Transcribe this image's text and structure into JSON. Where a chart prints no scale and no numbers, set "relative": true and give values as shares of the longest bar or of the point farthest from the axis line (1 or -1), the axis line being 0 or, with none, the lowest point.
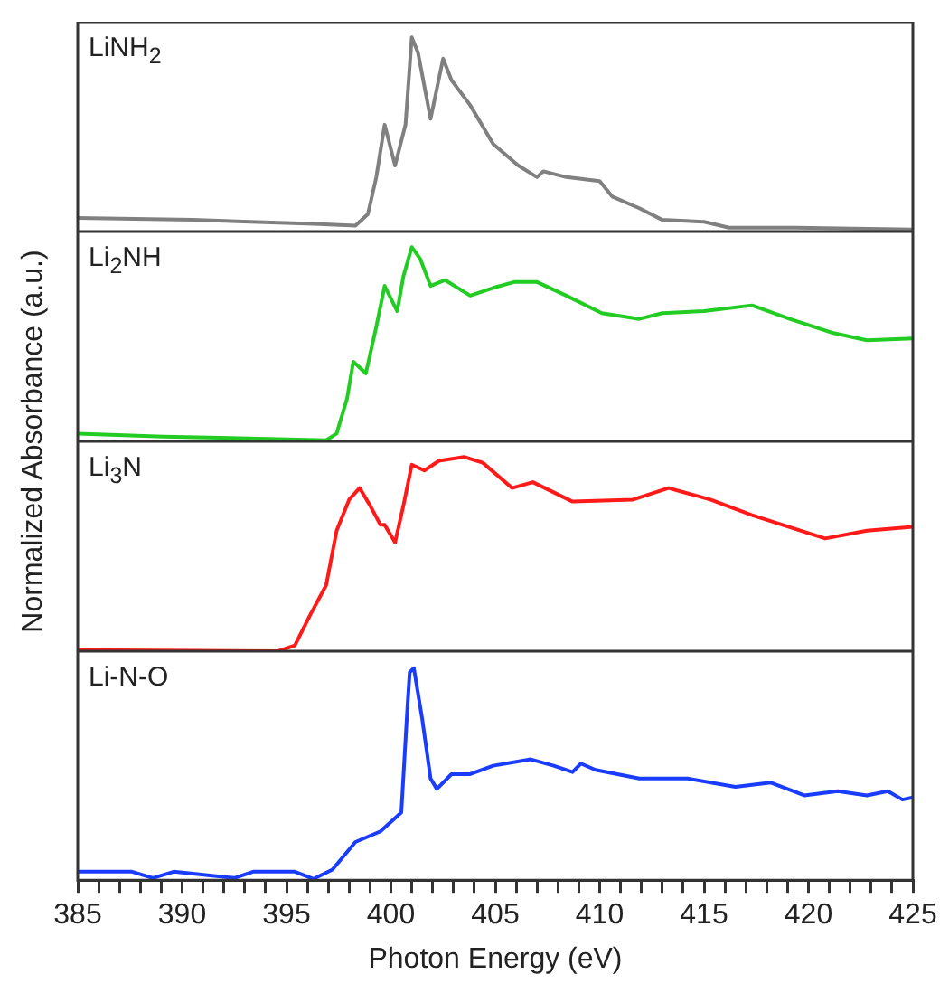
{
  "chart_data": [
    {
      "type": "line",
      "ylabel": "Normalized Absorbance (a.u.)",
      "relative": true,
      "xlim": [
        385,
        425
      ],
      "tick_labels": false,
      "x": [
        385,
        390.5,
        396.3,
        398.3,
        398.9,
        399.3,
        399.7,
        400.2,
        400.7,
        401.0,
        401.3,
        401.9,
        402.5,
        402.9,
        403.8,
        404.9,
        406.1,
        407.0,
        407.3,
        408.4,
        410.0,
        410.6,
        411.9,
        413.0,
        415.0,
        416.2,
        419.4,
        425
      ],
      "series": [
        {
          "name": "LiNH$_{2}$",
          "color": "#808080",
          "values": [
            0.07,
            0.06,
            0.04,
            0.03,
            0.09,
            0.28,
            0.55,
            0.34,
            0.55,
            1.0,
            0.92,
            0.58,
            0.89,
            0.78,
            0.65,
            0.45,
            0.34,
            0.28,
            0.31,
            0.28,
            0.26,
            0.18,
            0.12,
            0.06,
            0.05,
            0.02,
            0.02,
            0.01
          ]
        }
      ]
    },
    {
      "type": "line",
      "relative": true,
      "xlim": [
        385,
        425
      ],
      "tick_labels": false,
      "x": [
        385,
        389.1,
        396.9,
        397.4,
        397.9,
        398.2,
        398.8,
        399.3,
        399.7,
        400.3,
        400.6,
        401.0,
        401.4,
        401.9,
        402.6,
        403.8,
        404.9,
        405.9,
        407.0,
        408.4,
        410.1,
        411.9,
        413.0,
        415.0,
        417.3,
        419.1,
        421.1,
        422.8,
        425
      ],
      "series": [
        {
          "name": "Li$_{2}$NH",
          "color": "#22cc22",
          "values": [
            0.04,
            0.025,
            0.006,
            0.04,
            0.22,
            0.41,
            0.35,
            0.59,
            0.8,
            0.67,
            0.85,
            1.0,
            0.94,
            0.8,
            0.83,
            0.75,
            0.79,
            0.82,
            0.82,
            0.75,
            0.66,
            0.63,
            0.66,
            0.67,
            0.7,
            0.63,
            0.56,
            0.52,
            0.53
          ]
        }
      ]
    },
    {
      "type": "line",
      "relative": true,
      "xlim": [
        385,
        425
      ],
      "tick_labels": false,
      "x": [
        385,
        394.6,
        395.4,
        396.1,
        396.9,
        397.4,
        398.0,
        398.5,
        399.0,
        399.5,
        399.7,
        400.2,
        400.6,
        401.0,
        401.6,
        402.3,
        403.5,
        404.4,
        405.8,
        406.8,
        408.7,
        411.6,
        413.3,
        415.3,
        417.3,
        420.8,
        422.8,
        425
      ],
      "series": [
        {
          "name": "Li$_{3}$N",
          "color": "#ff1a1a",
          "values": [
            0.006,
            0,
            0.03,
            0.18,
            0.34,
            0.62,
            0.78,
            0.84,
            0.75,
            0.65,
            0.65,
            0.56,
            0.75,
            0.96,
            0.93,
            0.98,
            1.0,
            0.97,
            0.84,
            0.87,
            0.77,
            0.78,
            0.84,
            0.78,
            0.7,
            0.58,
            0.62,
            0.64
          ]
        }
      ]
    },
    {
      "type": "line",
      "relative": true,
      "xlabel": "Photon Energy (eV)",
      "xlim": [
        385,
        425
      ],
      "tick_labels": "x",
      "xticks": [
        385,
        {
          "value": 386,
          "label": null
        },
        {
          "value": 387,
          "label": null
        },
        {
          "value": 388,
          "label": null
        },
        {
          "value": 389,
          "label": null
        },
        390,
        {
          "value": 391,
          "label": null
        },
        {
          "value": 392,
          "label": null
        },
        {
          "value": 393,
          "label": null
        },
        {
          "value": 394,
          "label": null
        },
        395,
        {
          "value": 396,
          "label": null
        },
        {
          "value": 397,
          "label": null
        },
        {
          "value": 398,
          "label": null
        },
        {
          "value": 399,
          "label": null
        },
        400,
        {
          "value": 401,
          "label": null
        },
        {
          "value": 402,
          "label": null
        },
        {
          "value": 403,
          "label": null
        },
        {
          "value": 404,
          "label": null
        },
        405,
        {
          "value": 406,
          "label": null
        },
        {
          "value": 407,
          "label": null
        },
        {
          "value": 408,
          "label": null
        },
        {
          "value": 409,
          "label": null
        },
        410,
        {
          "value": 411,
          "label": null
        },
        {
          "value": 412,
          "label": null
        },
        {
          "value": 413,
          "label": null
        },
        {
          "value": 414,
          "label": null
        },
        415,
        {
          "value": 416,
          "label": null
        },
        {
          "value": 417,
          "label": null
        },
        {
          "value": 418,
          "label": null
        },
        {
          "value": 419,
          "label": null
        },
        420,
        {
          "value": 421,
          "label": null
        },
        {
          "value": 422,
          "label": null
        },
        {
          "value": 423,
          "label": null
        },
        {
          "value": 424,
          "label": null
        },
        425
      ],
      "x": [
        385,
        387.6,
        388.6,
        389.6,
        392.5,
        393.4,
        395.4,
        396.3,
        397.2,
        398.3,
        399.5,
        400.5,
        400.8,
        400.9,
        401.1,
        401.5,
        401.9,
        402.2,
        402.9,
        403.8,
        404.9,
        406.7,
        407.8,
        408.7,
        409.1,
        409.8,
        411.9,
        414.2,
        416.5,
        418.2,
        419.8,
        421.4,
        422.8,
        423.8,
        424.5,
        425
      ],
      "series": [
        {
          "name": "Li-N-O",
          "color": "#1a3cff",
          "values": [
            0.04,
            0.04,
            0.01,
            0.04,
            0.01,
            0.04,
            0.04,
            0.006,
            0.05,
            0.18,
            0.23,
            0.32,
            0.83,
            0.98,
            1.0,
            0.76,
            0.48,
            0.43,
            0.5,
            0.5,
            0.54,
            0.57,
            0.54,
            0.51,
            0.55,
            0.52,
            0.48,
            0.48,
            0.44,
            0.46,
            0.4,
            0.42,
            0.4,
            0.42,
            0.38,
            0.39
          ]
        }
      ]
    }
  ]
}
